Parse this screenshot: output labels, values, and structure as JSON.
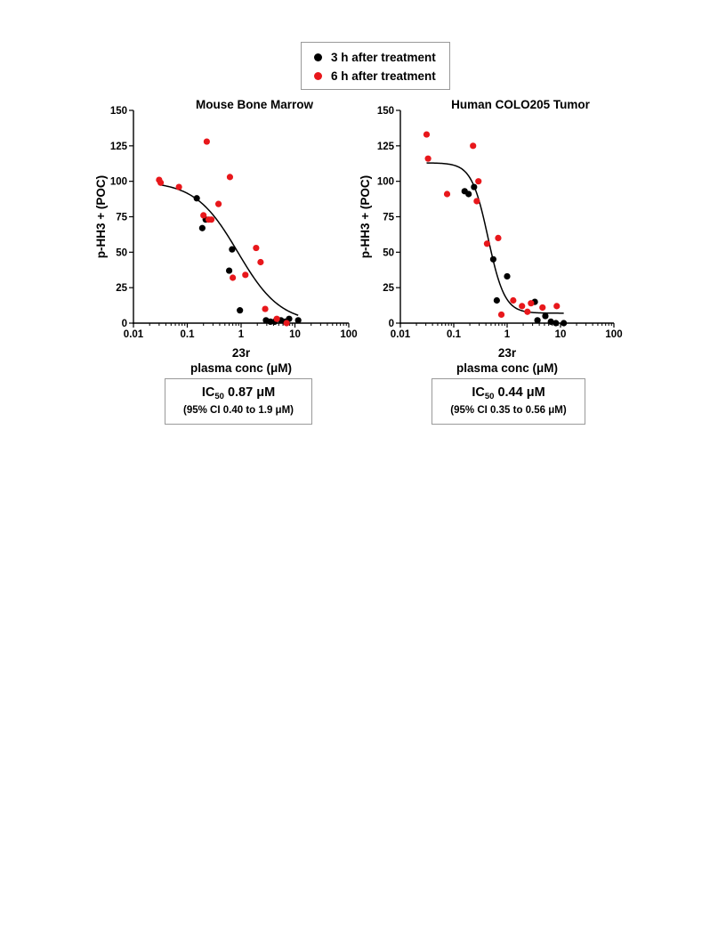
{
  "legend": [
    {
      "label": "3 h after treatment",
      "color": "#000000"
    },
    {
      "label": "6 h after treatment",
      "color": "#e8171b"
    }
  ],
  "chart_data": [
    {
      "type": "scatter",
      "title": "Mouse Bone Marrow",
      "ylabel": "p-HH3 + (POC)",
      "xlabel_line1": "23r",
      "xlabel_line2": "plasma conc (μM)",
      "x_scale": "log",
      "xlim": [
        0.01,
        100
      ],
      "ylim": [
        0,
        150
      ],
      "x_ticks": [
        "0.01",
        "0.1",
        "1",
        "10",
        "100"
      ],
      "y_ticks": [
        "0",
        "25",
        "50",
        "75",
        "100",
        "125",
        "150"
      ],
      "series": [
        {
          "name": "3 h after treatment",
          "color": "#000000",
          "points": [
            [
              0.15,
              88
            ],
            [
              0.19,
              67
            ],
            [
              0.22,
              73
            ],
            [
              0.6,
              37
            ],
            [
              0.68,
              52
            ],
            [
              0.95,
              9
            ],
            [
              2.9,
              2
            ],
            [
              3.5,
              1
            ],
            [
              4.2,
              1
            ],
            [
              5.5,
              2
            ],
            [
              7.8,
              3
            ],
            [
              11.5,
              2
            ],
            [
              6.6,
              1
            ]
          ]
        },
        {
          "name": "6 h after treatment",
          "color": "#e8171b",
          "points": [
            [
              0.03,
              101
            ],
            [
              0.032,
              99
            ],
            [
              0.07,
              96
            ],
            [
              0.2,
              76
            ],
            [
              0.23,
              128
            ],
            [
              0.25,
              73
            ],
            [
              0.28,
              73
            ],
            [
              0.38,
              84
            ],
            [
              0.62,
              103
            ],
            [
              0.7,
              32
            ],
            [
              1.2,
              34
            ],
            [
              1.9,
              53
            ],
            [
              2.3,
              43
            ],
            [
              2.8,
              10
            ],
            [
              4.6,
              3
            ],
            [
              7,
              0
            ]
          ]
        }
      ],
      "fit_curve": {
        "type": "4PL",
        "top": 100,
        "bottom": 0,
        "ic50": 0.87,
        "hill": 1.1
      },
      "annotation": {
        "label": "IC",
        "label_sub": "50",
        "value": "0.87 μM",
        "ci": "(95% CI 0.40 to 1.9 μM)"
      }
    },
    {
      "type": "scatter",
      "title": "Human COLO205 Tumor",
      "ylabel": "p-HH3 + (POC)",
      "xlabel_line1": "23r",
      "xlabel_line2": "plasma conc (μM)",
      "x_scale": "log",
      "xlim": [
        0.01,
        100
      ],
      "ylim": [
        0,
        150
      ],
      "x_ticks": [
        "0.01",
        "0.1",
        "1",
        "10",
        "100"
      ],
      "y_ticks": [
        "0",
        "25",
        "50",
        "75",
        "100",
        "125",
        "150"
      ],
      "series": [
        {
          "name": "3 h after treatment",
          "color": "#000000",
          "points": [
            [
              0.16,
              93
            ],
            [
              0.19,
              91
            ],
            [
              0.24,
              96
            ],
            [
              0.55,
              45
            ],
            [
              0.64,
              16
            ],
            [
              1.0,
              33
            ],
            [
              3.3,
              15
            ],
            [
              3.7,
              2
            ],
            [
              5.2,
              5
            ],
            [
              6.6,
              1
            ],
            [
              8.2,
              0
            ],
            [
              11.5,
              0
            ]
          ]
        },
        {
          "name": "6 h after treatment",
          "color": "#e8171b",
          "points": [
            [
              0.031,
              133
            ],
            [
              0.033,
              116
            ],
            [
              0.075,
              91
            ],
            [
              0.23,
              125
            ],
            [
              0.27,
              86
            ],
            [
              0.29,
              100
            ],
            [
              0.42,
              56
            ],
            [
              0.68,
              60
            ],
            [
              0.78,
              6
            ],
            [
              1.3,
              16
            ],
            [
              1.9,
              12
            ],
            [
              2.4,
              8
            ],
            [
              2.8,
              14
            ],
            [
              4.6,
              11
            ],
            [
              8.5,
              12
            ]
          ]
        }
      ],
      "fit_curve": {
        "type": "4PL",
        "top": 113,
        "bottom": 7,
        "ic50": 0.44,
        "hill": 2.8
      },
      "annotation": {
        "label": "IC",
        "label_sub": "50",
        "value": "0.44 μM",
        "ci": "(95% CI 0.35 to 0.56 μM)"
      }
    }
  ]
}
